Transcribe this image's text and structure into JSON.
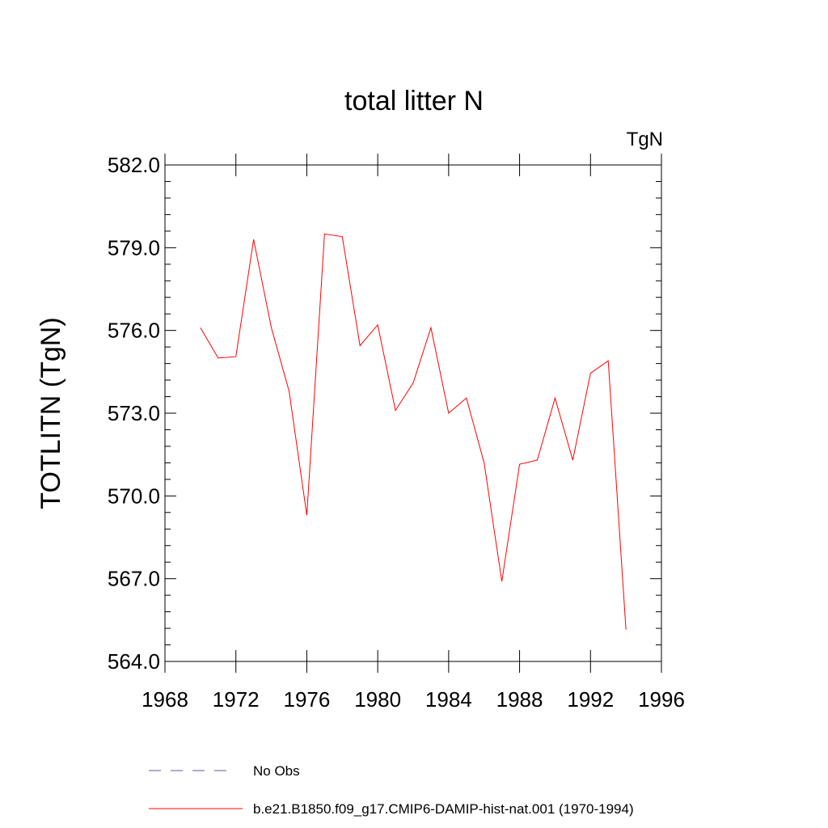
{
  "chart_data": {
    "type": "line",
    "title": "total litter N",
    "units_label": "TgN",
    "ylabel": "TOTLITN  (TgN)",
    "xlabel": "",
    "xlim": [
      1968,
      1996
    ],
    "ylim": [
      564.0,
      582.0
    ],
    "xticks": [
      1968,
      1972,
      1976,
      1980,
      1984,
      1988,
      1992,
      1996
    ],
    "xtick_labels": [
      "1968",
      "1972",
      "1976",
      "1980",
      "1984",
      "1988",
      "1992",
      "1996"
    ],
    "yticks": [
      564.0,
      567.0,
      570.0,
      573.0,
      576.0,
      579.0,
      582.0
    ],
    "ytick_labels": [
      "564.0",
      "567.0",
      "570.0",
      "573.0",
      "576.0",
      "579.0",
      "582.0"
    ],
    "grid": false,
    "legend_placement": "bottom",
    "series": [
      {
        "name": "b.e21.B1850.f09_g17.CMIP6-DAMIP-hist-nat.001 (1970-1994)",
        "color": "#ff0000",
        "dash": "solid",
        "x": [
          1970,
          1971,
          1972,
          1973,
          1974,
          1975,
          1976,
          1977,
          1978,
          1979,
          1980,
          1981,
          1982,
          1983,
          1984,
          1985,
          1986,
          1987,
          1988,
          1989,
          1990,
          1991,
          1992,
          1993,
          1994
        ],
        "y": [
          576.1,
          575.0,
          575.05,
          579.3,
          576.1,
          573.8,
          569.3,
          579.5,
          579.4,
          575.45,
          576.2,
          573.1,
          574.1,
          576.1,
          573.0,
          573.55,
          571.2,
          566.9,
          571.15,
          571.3,
          573.55,
          571.3,
          574.45,
          574.9,
          565.15
        ]
      }
    ],
    "legend": [
      {
        "name": "No Obs",
        "color": "#5a5aa0",
        "dash": "dashed"
      },
      {
        "name": "b.e21.B1850.f09_g17.CMIP6-DAMIP-hist-nat.001 (1970-1994)",
        "color": "#ff0000",
        "dash": "solid"
      }
    ]
  }
}
